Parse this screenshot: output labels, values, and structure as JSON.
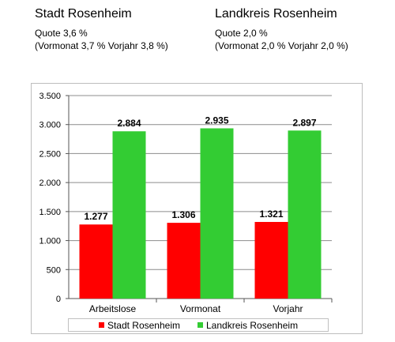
{
  "left": {
    "title": "Stadt Rosenheim",
    "quote": "Quote  3,6 %",
    "prior": "(Vormonat 3,7 % Vorjahr 3,8 %)"
  },
  "right": {
    "title": "Landkreis Rosenheim",
    "quote": "Quote  2,0 %",
    "prior": "(Vormonat 2,0 % Vorjahr 2,0 %)"
  },
  "chart_data": {
    "type": "bar",
    "categories": [
      "Arbeitslose",
      "Vormonat",
      "Vorjahr"
    ],
    "series": [
      {
        "name": "Stadt Rosenheim",
        "color": "#ff0000",
        "values": [
          1277,
          1306,
          1321
        ],
        "labels": [
          "1.277",
          "1.306",
          "1.321"
        ]
      },
      {
        "name": "Landkreis Rosenheim",
        "color": "#33cc33",
        "values": [
          2884,
          2935,
          2897
        ],
        "labels": [
          "2.884",
          "2.935",
          "2.897"
        ]
      }
    ],
    "ylim": [
      0,
      3500
    ],
    "yticks": [
      0,
      500,
      1000,
      1500,
      2000,
      2500,
      3000,
      3500
    ],
    "ytick_labels": [
      "0",
      "500",
      "1.000",
      "1.500",
      "2.000",
      "2.500",
      "3.000",
      "3.500"
    ],
    "grid": true,
    "legend_position": "bottom"
  }
}
